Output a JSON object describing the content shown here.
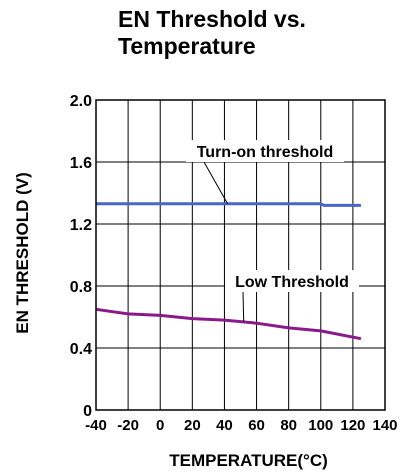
{
  "title_lines": [
    "EN  Threshold vs.",
    "Temperature"
  ],
  "chart_data": {
    "type": "line",
    "title": "EN  Threshold vs. Temperature",
    "xlabel": "TEMPERATURE(°C)",
    "ylabel": "EN THRESHOLD (V)",
    "xlim": [
      -40,
      140
    ],
    "ylim": [
      0,
      2.0
    ],
    "x_ticks": [
      "-40",
      "-20",
      "0",
      "20",
      "40",
      "60",
      "80",
      "100",
      "120",
      "140"
    ],
    "y_ticks": [
      "0",
      "0.4",
      "0.8",
      "1.2",
      "1.6",
      "2.0"
    ],
    "grid": true,
    "series": [
      {
        "name": "Turn-on threshold",
        "color": "#4a66cc",
        "x": [
          -40,
          0,
          40,
          80,
          100,
          102,
          125
        ],
        "y": [
          1.33,
          1.33,
          1.33,
          1.33,
          1.33,
          1.32,
          1.32
        ]
      },
      {
        "name": "Low Threshold",
        "color": "#8a1a8a",
        "x": [
          -40,
          -20,
          0,
          20,
          40,
          60,
          80,
          100,
          125
        ],
        "y": [
          0.65,
          0.62,
          0.61,
          0.59,
          0.58,
          0.56,
          0.53,
          0.51,
          0.46
        ]
      }
    ],
    "annotations": [
      {
        "text": "Turn-on threshold",
        "series": 0,
        "at_x": 42
      },
      {
        "text": "Low Threshold",
        "series": 1,
        "at_x": 52
      }
    ]
  }
}
